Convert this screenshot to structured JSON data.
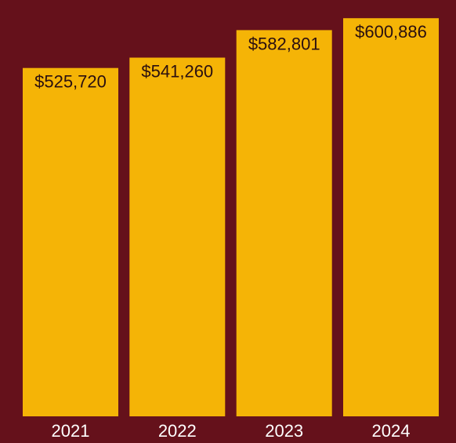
{
  "colors": {
    "background": "#65111b",
    "bar": "#f5b406",
    "value_text": "#2a0f10",
    "tick_text": "#ffffff"
  },
  "chart_data": {
    "type": "bar",
    "categories": [
      "2021",
      "2022",
      "2023",
      "2024"
    ],
    "values": [
      525720,
      541260,
      582801,
      600886
    ],
    "data_labels": [
      "$525,720",
      "$541,260",
      "$582,801",
      "$600,886"
    ],
    "title": "",
    "xlabel": "",
    "ylabel": "",
    "ylim": [
      0,
      620000
    ],
    "grid": false,
    "legend": "none"
  }
}
